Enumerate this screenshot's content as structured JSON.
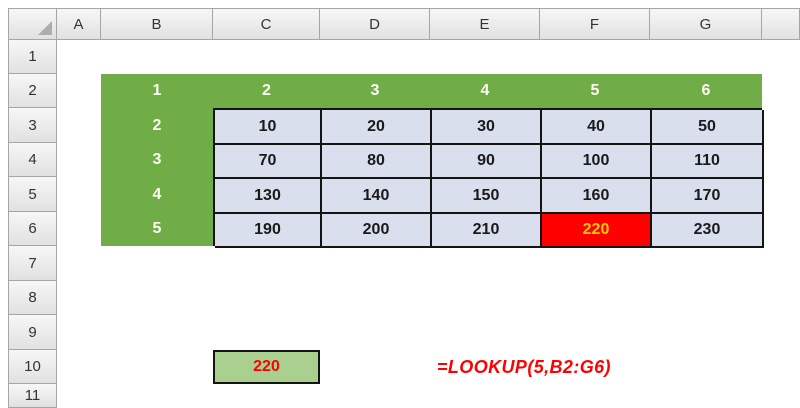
{
  "sheet": {
    "column_headers": [
      "A",
      "B",
      "C",
      "D",
      "E",
      "F",
      "G"
    ],
    "row_headers": [
      "1",
      "2",
      "3",
      "4",
      "5",
      "6",
      "7",
      "8",
      "9",
      "10",
      "11"
    ]
  },
  "lookup_table": {
    "header_row": [
      "1",
      "2",
      "3",
      "4",
      "5",
      "6"
    ],
    "row_headers": [
      "2",
      "3",
      "4",
      "5"
    ],
    "rows": [
      [
        "10",
        "20",
        "30",
        "40",
        "50"
      ],
      [
        "70",
        "80",
        "90",
        "100",
        "110"
      ],
      [
        "130",
        "140",
        "150",
        "160",
        "170"
      ],
      [
        "190",
        "200",
        "210",
        "220",
        "230"
      ]
    ],
    "highlighted_cell": {
      "row_index": 3,
      "col_index": 3,
      "value": "220"
    }
  },
  "result_cell": {
    "value": "220"
  },
  "formula_label": "=LOOKUP(5,B2:G6)",
  "colors": {
    "header_green": "#70AD47",
    "cell_blue": "#D9DFED",
    "highlight_red": "#FE0000",
    "highlight_text_yellow": "#FFCC00",
    "result_green": "#A9D08E",
    "result_text_red": "#FE0000",
    "table_border": "#141414"
  }
}
